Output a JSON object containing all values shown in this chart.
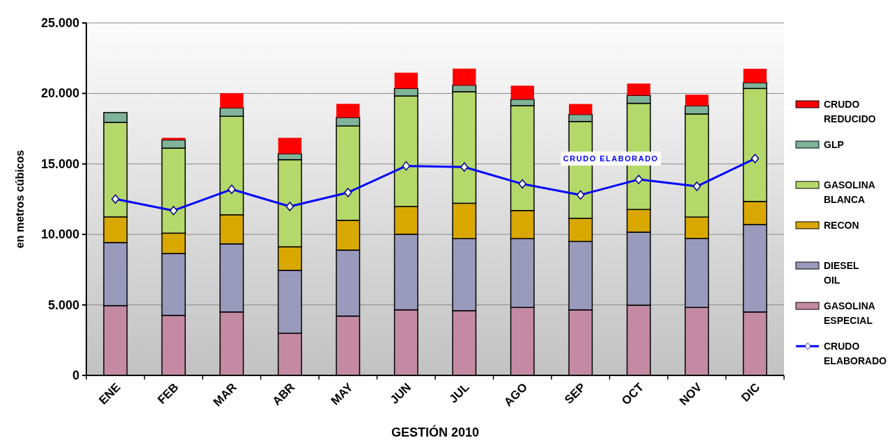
{
  "chart_data": {
    "type": "bar",
    "stacked": true,
    "xlabel": "GESTIÓN 2010",
    "ylabel": "en metros cúbicos",
    "categories": [
      "ENE",
      "FEB",
      "MAR",
      "ABR",
      "MAY",
      "JUN",
      "JUL",
      "AGO",
      "SEP",
      "OCT",
      "NOV",
      "DIC"
    ],
    "ylim": [
      0,
      25000
    ],
    "yticks": [
      {
        "value": 0,
        "label": "0"
      },
      {
        "value": 5000,
        "label": "5.000"
      },
      {
        "value": 10000,
        "label": "10.000"
      },
      {
        "value": 15000,
        "label": "15.000"
      },
      {
        "value": 20000,
        "label": "20.000"
      },
      {
        "value": 25000,
        "label": "25.000"
      }
    ],
    "grid": "y",
    "legend": "right",
    "series": [
      {
        "name": "GASOLINA ESPECIAL",
        "color": "#c48aa3",
        "values": [
          4950,
          4260,
          4500,
          2990,
          4210,
          4650,
          4590,
          4820,
          4650,
          4980,
          4820,
          4500
        ]
      },
      {
        "name": "DIESEL OIL",
        "color": "#9a9abd",
        "values": [
          4470,
          4390,
          4830,
          4460,
          4680,
          5360,
          5110,
          4880,
          4850,
          5180,
          4890,
          6200
        ]
      },
      {
        "name": "RECON",
        "color": "#d9a800",
        "values": [
          1820,
          1440,
          2060,
          1670,
          2110,
          1970,
          2510,
          1990,
          1640,
          1610,
          1520,
          1640
        ]
      },
      {
        "name": "GASOLINA BLANCA",
        "color": "#b5d86a",
        "values": [
          6710,
          6030,
          6990,
          6180,
          6690,
          7840,
          7910,
          7440,
          6870,
          7530,
          7310,
          8010
        ]
      },
      {
        "name": "GLP",
        "color": "#7fb39a",
        "values": [
          690,
          580,
          590,
          420,
          600,
          530,
          460,
          450,
          500,
          560,
          580,
          410
        ]
      },
      {
        "name": "CRUDO REDUCIDO",
        "color": "#ff0000",
        "values": [
          0,
          150,
          1050,
          1130,
          970,
          1120,
          1180,
          970,
          740,
          840,
          790,
          990
        ]
      },
      {
        "name": "CRUDO ELABORADO",
        "type": "line",
        "color": "#0000ff",
        "marker": "diamond",
        "values": [
          12510,
          11690,
          13200,
          11980,
          12970,
          14860,
          14780,
          13580,
          12800,
          13900,
          13410,
          15380
        ]
      }
    ],
    "annotations": [
      {
        "text": "CRUDO ELABORADO",
        "x": "OCT",
        "y": 13900
      }
    ]
  }
}
